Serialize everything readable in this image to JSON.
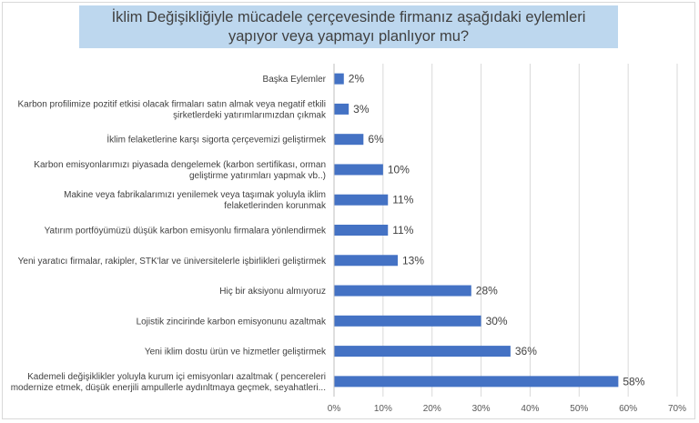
{
  "chart_data": {
    "type": "bar",
    "orientation": "horizontal",
    "title": "İklim Değişikliğiyle mücadele çerçevesinde firmanız aşağıdaki eylemleri yapıyor veya yapmayı planlıyor mu?",
    "xlabel": "",
    "ylabel": "",
    "xlim": [
      0,
      70
    ],
    "x_ticks": [
      "0%",
      "10%",
      "20%",
      "30%",
      "40%",
      "50%",
      "60%",
      "70%"
    ],
    "grid": true,
    "bar_color": "#4472c4",
    "categories": [
      [
        "Başka Eylemler"
      ],
      [
        "Karbon profilimize pozitif etkisi olacak firmaları satın almak veya negatif etkili",
        "şirketlerdeki yatırımlarımızdan çıkmak"
      ],
      [
        "İklim felaketlerine karşı sigorta çerçevemizi geliştirmek"
      ],
      [
        "Karbon emisyonlarımızı piyasada dengelemek (karbon sertifikası, orman",
        "geliştirme yatırımları yapmak vb..)"
      ],
      [
        "Makine veya fabrikalarımızı yenilemek veya taşımak yoluyla iklim",
        "felaketlerinden korunmak"
      ],
      [
        "Yatırım portföyümüzü düşük karbon emisyonlu firmalara yönlendirmek"
      ],
      [
        "Yeni yaratıcı firmalar, rakipler, STK'lar ve üniversitelerle işbirlikleri geliştirmek"
      ],
      [
        "Hiç bir aksiyonu almıyoruz"
      ],
      [
        "Lojistik zincirinde karbon emisyonunu azaltmak"
      ],
      [
        "Yeni iklim dostu ürün ve hizmetler geliştirmek"
      ],
      [
        "Kademeli değişiklikler yoluyla kurum içi emisyonları azaltmak ( pencereleri",
        "modernize etmek, düşük enerjili ampullerle aydınltmaya geçmek, seyahatleri..."
      ]
    ],
    "values": [
      2,
      3,
      6,
      10,
      11,
      11,
      13,
      28,
      30,
      36,
      58
    ],
    "data_labels": [
      "2%",
      "3%",
      "6%",
      "10%",
      "11%",
      "11%",
      "13%",
      "28%",
      "30%",
      "36%",
      "58%"
    ]
  }
}
